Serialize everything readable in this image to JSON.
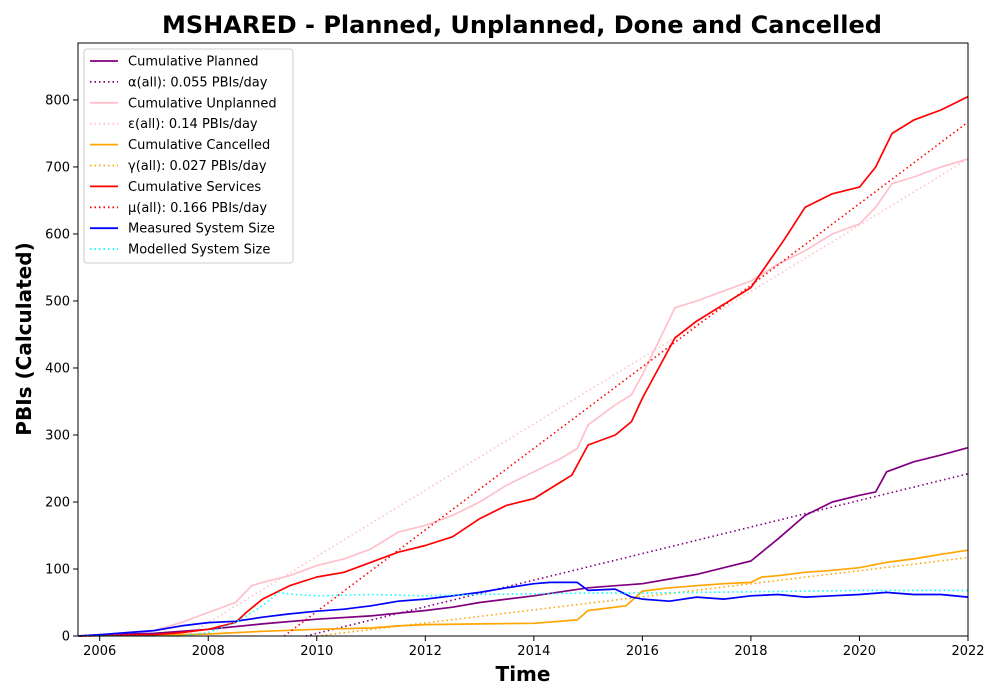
{
  "chart_data": {
    "type": "line",
    "title": "MSHARED - Planned, Unplanned, Done  and Cancelled",
    "xlabel": "Time",
    "ylabel": "PBIs (Calculated)",
    "xlim": [
      2005.6,
      2022.0
    ],
    "ylim": [
      0,
      885
    ],
    "xticks": [
      2006,
      2008,
      2010,
      2012,
      2014,
      2016,
      2018,
      2020,
      2022
    ],
    "xtick_labels": [
      "2006",
      "2008",
      "2010",
      "2012",
      "2014",
      "2016",
      "2018",
      "2020",
      "2022"
    ],
    "yticks": [
      0,
      100,
      200,
      300,
      400,
      500,
      600,
      700,
      800
    ],
    "ytick_labels": [
      "0",
      "100",
      "200",
      "300",
      "400",
      "500",
      "600",
      "700",
      "800"
    ],
    "grid": false,
    "legend_position": "top-left",
    "series": [
      {
        "name": "Cumulative Planned",
        "color": "#800080",
        "style": "solid",
        "x": [
          2005.6,
          2006.0,
          2007.0,
          2008.0,
          2009.0,
          2010.0,
          2011.0,
          2012.0,
          2012.5,
          2013.0,
          2014.0,
          2015.0,
          2015.5,
          2016.0,
          2016.5,
          2017.0,
          2017.5,
          2018.0,
          2018.5,
          2019.0,
          2019.5,
          2020.0,
          2020.3,
          2020.5,
          2021.0,
          2021.5,
          2022.0
        ],
        "y": [
          0,
          2,
          4,
          10,
          18,
          25,
          30,
          38,
          43,
          50,
          60,
          72,
          75,
          78,
          85,
          92,
          102,
          112,
          145,
          180,
          200,
          210,
          215,
          245,
          260,
          270,
          281
        ]
      },
      {
        "name": "α(all): 0.055 PBIs/day",
        "color": "#800080",
        "style": "dotted",
        "x": [
          2009.8,
          2022.0
        ],
        "y": [
          0,
          242
        ]
      },
      {
        "name": "Cumulative Unplanned",
        "color": "#ffc0cb",
        "style": "solid",
        "x": [
          2005.6,
          2006.0,
          2007.0,
          2007.5,
          2008.0,
          2008.5,
          2008.8,
          2009.0,
          2009.5,
          2010.0,
          2010.5,
          2011.0,
          2011.5,
          2012.0,
          2012.5,
          2013.0,
          2013.5,
          2014.0,
          2014.5,
          2014.8,
          2015.0,
          2015.5,
          2015.8,
          2016.0,
          2016.3,
          2016.6,
          2017.0,
          2017.5,
          2018.0,
          2018.5,
          2019.0,
          2019.5,
          2020.0,
          2020.3,
          2020.6,
          2021.0,
          2021.5,
          2022.0
        ],
        "y": [
          0,
          2,
          8,
          20,
          35,
          50,
          75,
          80,
          90,
          105,
          115,
          130,
          155,
          165,
          180,
          200,
          225,
          245,
          265,
          280,
          315,
          345,
          360,
          390,
          440,
          490,
          500,
          515,
          530,
          555,
          575,
          600,
          615,
          640,
          675,
          685,
          700,
          712
        ]
      },
      {
        "name": "ε(all): 0.14 PBIs/day",
        "color": "#ffc0cb",
        "style": "dotted",
        "x": [
          2007.6,
          2022.0
        ],
        "y": [
          0,
          712
        ]
      },
      {
        "name": "Cumulative Cancelled",
        "color": "#ffa500",
        "style": "solid",
        "x": [
          2005.6,
          2007.0,
          2008.0,
          2009.0,
          2010.0,
          2011.0,
          2011.5,
          2012.0,
          2013.0,
          2014.0,
          2014.8,
          2015.0,
          2015.7,
          2016.0,
          2016.5,
          2017.0,
          2017.5,
          2018.0,
          2018.2,
          2018.5,
          2019.0,
          2019.5,
          2020.0,
          2020.5,
          2021.0,
          2021.5,
          2022.0
        ],
        "y": [
          0,
          1,
          3,
          7,
          10,
          12,
          15,
          17,
          18,
          19,
          24,
          38,
          45,
          67,
          72,
          75,
          78,
          80,
          88,
          90,
          95,
          98,
          102,
          110,
          115,
          122,
          128
        ]
      },
      {
        "name": "γ(all): 0.027 PBIs/day",
        "color": "#ffa500",
        "style": "dotted",
        "x": [
          2010.0,
          2022.0
        ],
        "y": [
          0,
          117
        ]
      },
      {
        "name": "Cumulative Services",
        "color": "#ff0000",
        "style": "solid",
        "x": [
          2005.6,
          2007.0,
          2007.5,
          2008.0,
          2008.5,
          2008.7,
          2009.0,
          2009.5,
          2010.0,
          2010.5,
          2011.0,
          2011.5,
          2012.0,
          2012.5,
          2013.0,
          2013.5,
          2014.0,
          2014.5,
          2014.7,
          2015.0,
          2015.5,
          2015.8,
          2016.0,
          2016.3,
          2016.6,
          2017.0,
          2017.5,
          2018.0,
          2018.3,
          2018.6,
          2019.0,
          2019.5,
          2020.0,
          2020.3,
          2020.6,
          2021.0,
          2021.5,
          2022.0
        ],
        "y": [
          0,
          2,
          5,
          10,
          20,
          35,
          55,
          75,
          88,
          95,
          110,
          125,
          135,
          148,
          175,
          195,
          205,
          230,
          240,
          285,
          300,
          320,
          355,
          400,
          445,
          470,
          495,
          520,
          555,
          590,
          640,
          660,
          670,
          700,
          750,
          770,
          785,
          805
        ]
      },
      {
        "name": "μ(all): 0.166 PBIs/day",
        "color": "#ff0000",
        "style": "dotted",
        "x": [
          2009.4,
          2022.0
        ],
        "y": [
          0,
          767
        ]
      },
      {
        "name": "Measured System Size",
        "color": "#0000ff",
        "style": "solid",
        "x": [
          2005.6,
          2006.0,
          2006.5,
          2007.0,
          2007.5,
          2008.0,
          2008.5,
          2009.0,
          2009.5,
          2010.0,
          2010.5,
          2011.0,
          2011.5,
          2012.0,
          2012.5,
          2013.0,
          2013.5,
          2014.0,
          2014.3,
          2014.8,
          2015.0,
          2015.5,
          2015.8,
          2016.0,
          2016.5,
          2017.0,
          2017.5,
          2018.0,
          2018.5,
          2019.0,
          2019.5,
          2020.0,
          2020.5,
          2021.0,
          2021.5,
          2022.0
        ],
        "y": [
          0,
          2,
          5,
          8,
          15,
          20,
          22,
          28,
          33,
          37,
          40,
          45,
          52,
          55,
          60,
          65,
          72,
          78,
          80,
          80,
          68,
          70,
          58,
          55,
          52,
          58,
          55,
          60,
          62,
          58,
          60,
          62,
          65,
          62,
          62,
          58
        ]
      },
      {
        "name": "Modelled System Size",
        "color": "#00ffff",
        "style": "dotted",
        "x": [
          2005.6,
          2007.5,
          2008.0,
          2008.5,
          2009.0,
          2009.3,
          2009.6,
          2010.0,
          2011.0,
          2012.0,
          2013.0,
          2014.0,
          2015.0,
          2016.0,
          2017.0,
          2018.0,
          2019.0,
          2020.0,
          2021.0,
          2022.0
        ],
        "y": [
          0,
          0,
          5,
          20,
          45,
          65,
          62,
          60,
          62,
          60,
          62,
          63,
          64,
          64,
          65,
          66,
          67,
          68,
          68,
          68
        ]
      }
    ]
  }
}
